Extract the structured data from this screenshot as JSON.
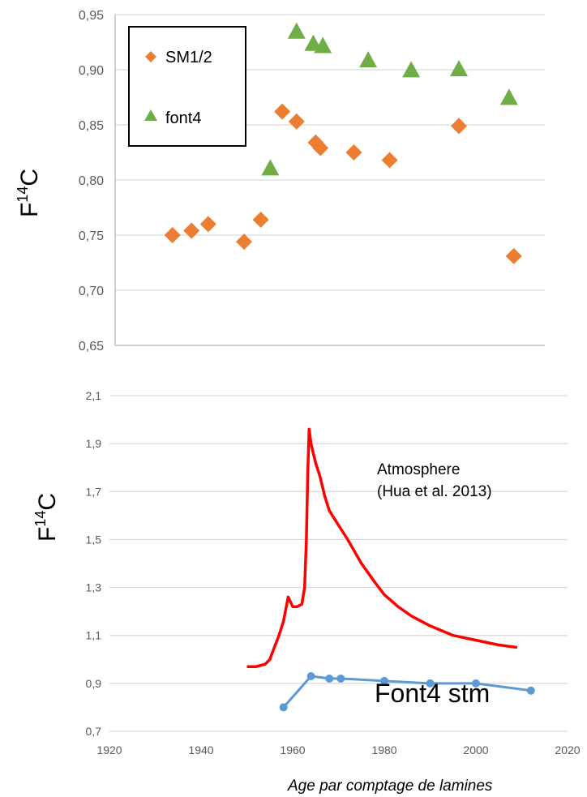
{
  "colors": {
    "orange": "#ED7D31",
    "green": "#70AD47",
    "red": "#FF0000",
    "blue": "#5B9BD5",
    "grid": "#d9d9d9",
    "axis": "#bfbfbf"
  },
  "chart_data": [
    {
      "type": "scatter",
      "title": "",
      "ylabel_main": "F",
      "ylabel_sup": "14",
      "ylabel_tail": "C",
      "ylim": [
        0.65,
        0.95
      ],
      "yticks": [
        "0,95",
        "0,90",
        "0,85",
        "0,80",
        "0,75",
        "0,70",
        "0,65"
      ],
      "ytick_values": [
        0.95,
        0.9,
        0.85,
        0.8,
        0.75,
        0.7,
        0.65
      ],
      "xlim": [
        1930,
        2020
      ],
      "grid": true,
      "legend_position": "top-left",
      "series": [
        {
          "name": "SM1/2",
          "marker": "diamond",
          "x": [
            1942,
            1946,
            1949.5,
            1957,
            1960.5,
            1965,
            1968,
            1972,
            1973,
            1980,
            1987.5,
            2002,
            2013.5
          ],
          "y": [
            0.75,
            0.754,
            0.76,
            0.744,
            0.764,
            0.862,
            0.853,
            0.834,
            0.829,
            0.825,
            0.818,
            0.849,
            0.731
          ]
        },
        {
          "name": "font4",
          "marker": "triangle",
          "x": [
            1962.5,
            1968,
            1971.5,
            1973.5,
            1983,
            1992,
            2002,
            2012.5
          ],
          "y": [
            0.81,
            0.934,
            0.923,
            0.921,
            0.908,
            0.899,
            0.9,
            0.874
          ]
        }
      ]
    },
    {
      "type": "line",
      "title": "",
      "ylabel_main": "F",
      "ylabel_sup": "14",
      "ylabel_tail": "C",
      "xlabel": "Age par comptage de lamines",
      "xlim": [
        1920,
        2020
      ],
      "ylim": [
        0.7,
        2.1
      ],
      "xticks": [
        "1920",
        "1940",
        "1960",
        "1980",
        "2000",
        "2020"
      ],
      "xtick_values": [
        1920,
        1940,
        1960,
        1980,
        2000,
        2020
      ],
      "yticks": [
        "2,1",
        "1,9",
        "1,7",
        "1,5",
        "1,3",
        "1,1",
        "0,9",
        "0,7"
      ],
      "ytick_values": [
        2.1,
        1.9,
        1.7,
        1.5,
        1.3,
        1.1,
        0.9,
        0.7
      ],
      "grid": true,
      "annotations": {
        "atmosphere_line1": "Atmosphere",
        "atmosphere_line2": "(Hua et al. 2013)",
        "font4_label": "Font4 stm"
      },
      "series": [
        {
          "name": "Atmosphere",
          "x": [
            1950,
            1952,
            1954,
            1955,
            1956,
            1957,
            1958,
            1959,
            1960,
            1961,
            1962,
            1962.6,
            1963,
            1963.3,
            1963.6,
            1964,
            1964.5,
            1965,
            1966,
            1967,
            1968,
            1970,
            1972,
            1975,
            1978,
            1980,
            1983,
            1986,
            1990,
            1995,
            2000,
            2005,
            2009
          ],
          "y": [
            0.97,
            0.97,
            0.98,
            1.0,
            1.05,
            1.1,
            1.16,
            1.26,
            1.22,
            1.22,
            1.23,
            1.3,
            1.5,
            1.78,
            1.96,
            1.9,
            1.86,
            1.82,
            1.76,
            1.68,
            1.62,
            1.56,
            1.5,
            1.4,
            1.32,
            1.27,
            1.22,
            1.18,
            1.14,
            1.1,
            1.08,
            1.06,
            1.05
          ]
        },
        {
          "name": "Font4 stm",
          "x": [
            1958,
            1964,
            1968,
            1970.5,
            1980,
            1990,
            2000,
            2012
          ],
          "y": [
            0.8,
            0.93,
            0.92,
            0.92,
            0.91,
            0.9,
            0.9,
            0.87
          ]
        }
      ]
    }
  ]
}
